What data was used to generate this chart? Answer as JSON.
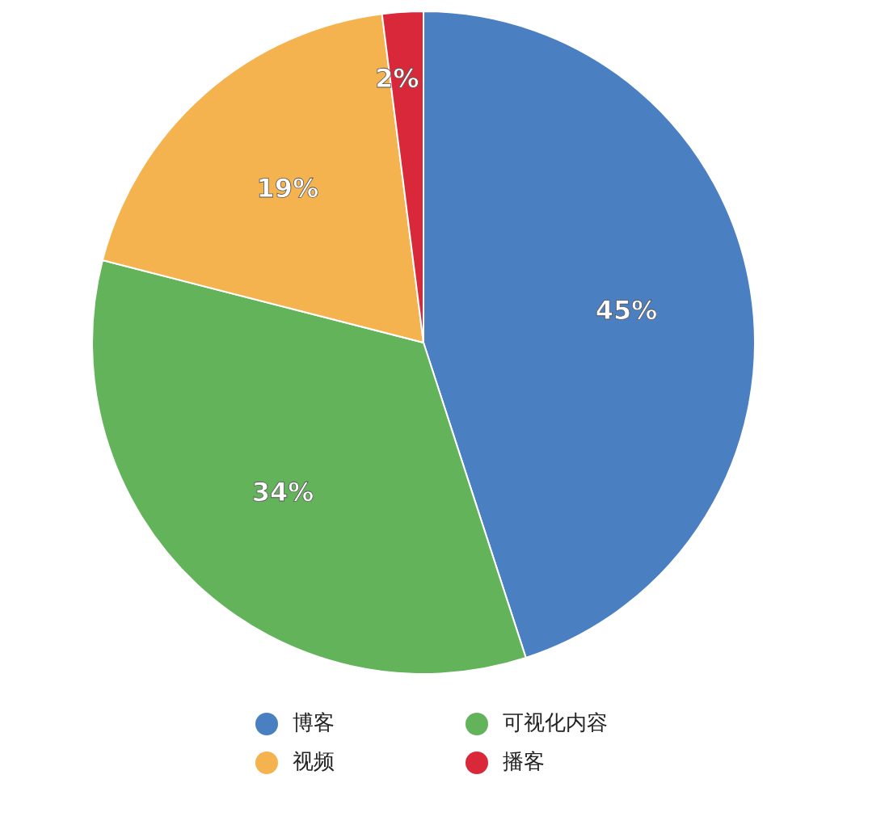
{
  "chart_data": {
    "type": "pie",
    "categories": [
      "博客",
      "可视化内容",
      "视频",
      "播客"
    ],
    "values": [
      45,
      34,
      19,
      2
    ],
    "colors": [
      "#4a7fc1",
      "#62b35a",
      "#f5b34f",
      "#d9283a"
    ],
    "value_labels": [
      "45%",
      "34%",
      "19%",
      "2%"
    ],
    "legend": "bottom"
  }
}
